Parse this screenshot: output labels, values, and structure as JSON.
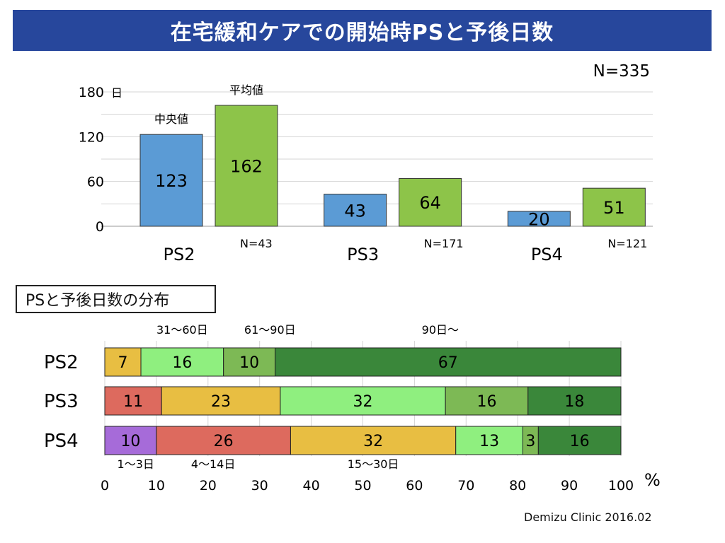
{
  "title": "在宅緩和ケアでの開始時PSと予後日数",
  "credit": "Demizu Clinic 2016.02",
  "chart_data": [
    {
      "type": "bar",
      "categories": [
        "PS2",
        "PS3",
        "PS4"
      ],
      "category_counts": [
        "N=43",
        "N=171",
        "N=121"
      ],
      "total_n": "N=335",
      "y_unit": "日",
      "ylim": [
        0,
        180
      ],
      "yticks": [
        0,
        60,
        120,
        180
      ],
      "grid": true,
      "series": [
        {
          "name": "中央値",
          "values": [
            123,
            43,
            20
          ],
          "color": "#5b9bd5"
        },
        {
          "name": "平均値",
          "values": [
            162,
            64,
            51
          ],
          "color": "#8dc449"
        }
      ]
    },
    {
      "type": "bar",
      "orientation": "horizontal",
      "stacked": true,
      "title": "PSと予後日数の分布",
      "categories": [
        "PS2",
        "PS3",
        "PS4"
      ],
      "xlim": [
        0,
        100
      ],
      "xticks": [
        0,
        10,
        20,
        30,
        40,
        50,
        60,
        70,
        80,
        90,
        100
      ],
      "x_unit": "%",
      "grid": true,
      "segments": {
        "PS2": [
          {
            "label": "15〜30日",
            "value": 7
          },
          {
            "label": "31〜60日",
            "value": 16
          },
          {
            "label": "61〜90日",
            "value": 10
          },
          {
            "label": "90日〜",
            "value": 67
          }
        ],
        "PS3": [
          {
            "label": "4〜14日",
            "value": 11
          },
          {
            "label": "15〜30日",
            "value": 23
          },
          {
            "label": "31〜60日",
            "value": 32
          },
          {
            "label": "61〜90日",
            "value": 16
          },
          {
            "label": "90日〜",
            "value": 18
          }
        ],
        "PS4": [
          {
            "label": "1〜3日",
            "value": 10
          },
          {
            "label": "4〜14日",
            "value": 26
          },
          {
            "label": "15〜30日",
            "value": 32
          },
          {
            "label": "31〜60日",
            "value": 13
          },
          {
            "label": "61〜90日",
            "value": 3
          },
          {
            "label": "90日〜",
            "value": 16
          }
        ]
      },
      "range_colors": {
        "1〜3日": "#a66bd9",
        "4〜14日": "#dd6a5e",
        "15〜30日": "#e8be42",
        "31〜60日": "#8fef7f",
        "61〜90日": "#7db955",
        "90日〜": "#3a873a"
      },
      "top_annotations": [
        {
          "text": "31〜60日",
          "at": 15
        },
        {
          "text": "61〜90日",
          "at": 32
        },
        {
          "text": "90日〜",
          "at": 65
        }
      ],
      "bottom_annotations": [
        {
          "text": "1〜3日",
          "at": 6
        },
        {
          "text": "4〜14日",
          "at": 21
        },
        {
          "text": "15〜30日",
          "at": 52
        }
      ]
    }
  ]
}
